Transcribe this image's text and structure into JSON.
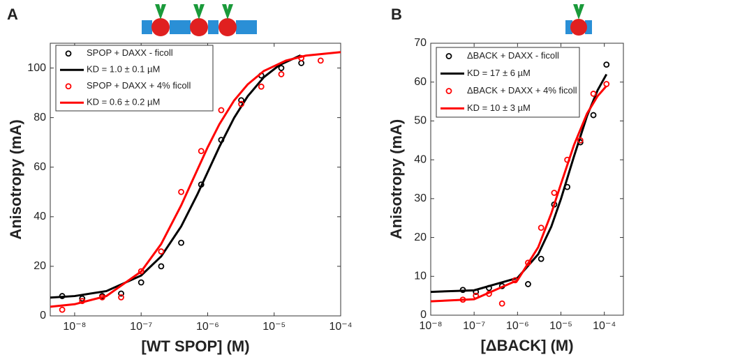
{
  "chart_data": [
    {
      "type": "scatter-fit",
      "panel_label": "A",
      "xlabel": "[WT SPOP] (M)",
      "ylabel": "Anisotropy (mA)",
      "log_x": true,
      "xlim": [
        4.3e-09,
        0.0001
      ],
      "ylim": [
        0,
        110
      ],
      "xticks": [
        {
          "value": 1e-08,
          "label": "10⁻⁸"
        },
        {
          "value": 1e-07,
          "label": "10⁻⁷"
        },
        {
          "value": 1e-06,
          "label": "10⁻⁶"
        },
        {
          "value": 1e-05,
          "label": "10⁻⁵"
        },
        {
          "value": 0.0001,
          "label": "10⁻⁴"
        }
      ],
      "yticks": [
        0,
        20,
        40,
        60,
        80,
        100
      ],
      "series": [
        {
          "name": "SPOP + DAXX - ficoll",
          "color": "#000000",
          "mark": "circle",
          "x": [
            6.5e-09,
            1.3e-08,
            2.6e-08,
            5e-08,
            1e-07,
            2e-07,
            4e-07,
            8e-07,
            1.6e-06,
            3.2e-06,
            6.4e-06,
            1.28e-05,
            2.56e-05
          ],
          "values": [
            8,
            7,
            8,
            9,
            13.5,
            20,
            29.5,
            53,
            71,
            87,
            97,
            100,
            102
          ]
        },
        {
          "name": "KD = 1.0 ± 0.1 µM",
          "color": "#000000",
          "mark": "line",
          "x": [
            4.3e-09,
            1e-08,
            3e-08,
            1e-07,
            2e-07,
            4e-07,
            7e-07,
            1e-06,
            1.5e-06,
            2.5e-06,
            4e-06,
            7e-06,
            1.2e-05,
            2.5e-05
          ],
          "values": [
            7.4,
            8.0,
            10.0,
            16.3,
            24,
            36.1,
            49,
            58,
            68.2,
            79.9,
            88.6,
            96.3,
            101.2,
            105.1
          ]
        },
        {
          "name": "SPOP + DAXX + 4% ficoll",
          "color": "#ff0000",
          "mark": "circle",
          "x": [
            6.5e-09,
            1.3e-08,
            2.6e-08,
            5e-08,
            1e-07,
            2e-07,
            4e-07,
            8e-07,
            1.6e-06,
            3.2e-06,
            6.4e-06,
            1.28e-05,
            2.56e-05,
            5e-05
          ],
          "values": [
            2.5,
            6,
            7.5,
            7.5,
            18,
            26,
            50,
            66.5,
            83,
            85.5,
            92.5,
            97.5,
            104,
            103
          ]
        },
        {
          "name": "KD = 0.6 ± 0.2 µM",
          "color": "#ff0000",
          "mark": "line",
          "x": [
            4.3e-09,
            1e-08,
            3e-08,
            1e-07,
            2e-07,
            4e-07,
            6e-07,
            1e-06,
            1.5e-06,
            2.5e-06,
            4e-06,
            7e-06,
            1.5e-05,
            3e-05,
            0.0001
          ],
          "values": [
            3.7,
            4.7,
            8.0,
            17.9,
            29,
            44.6,
            55,
            68,
            77.3,
            86.9,
            93.4,
            98.8,
            103,
            105,
            106.4
          ]
        }
      ]
    },
    {
      "type": "scatter-fit",
      "panel_label": "B",
      "xlabel": "[ΔBACK] (M)",
      "ylabel": "Anisotropy (mA)",
      "log_x": true,
      "xlim": [
        1e-08,
        0.000275
      ],
      "ylim": [
        0,
        70
      ],
      "xticks": [
        {
          "value": 1e-08,
          "label": "10⁻⁸"
        },
        {
          "value": 1e-07,
          "label": "10⁻⁷"
        },
        {
          "value": 1e-06,
          "label": "10⁻⁶"
        },
        {
          "value": 1e-05,
          "label": "10⁻⁵"
        },
        {
          "value": 0.0001,
          "label": "10⁻⁴"
        }
      ],
      "yticks": [
        0,
        10,
        20,
        30,
        40,
        50,
        60,
        70
      ],
      "series": [
        {
          "name": "ΔBACK + DAXX - ficoll",
          "color": "#000000",
          "mark": "circle",
          "x": [
            5.5e-08,
            1.1e-07,
            2.2e-07,
            4.4e-07,
            1.75e-06,
            3.5e-06,
            7e-06,
            1.4e-05,
            2.8e-05,
            5.6e-05,
            0.000112
          ],
          "values": [
            6.5,
            6,
            7,
            7.5,
            8,
            14.5,
            28.5,
            33,
            44.5,
            51.5,
            64.5
          ]
        },
        {
          "name": "KD = 17 ± 6 µM",
          "color": "#000000",
          "mark": "line",
          "x": [
            1e-08,
            1e-07,
            1e-06,
            3e-06,
            6e-06,
            1e-05,
            2e-05,
            4e-05,
            7e-05,
            0.000112
          ],
          "values": [
            6.0,
            6.4,
            9.6,
            15.7,
            22.8,
            29.9,
            40.9,
            51.3,
            57.9,
            62.0
          ]
        },
        {
          "name": "ΔBACK + DAXX + 4% ficoll",
          "color": "#ff0000",
          "mark": "circle",
          "x": [
            5.5e-08,
            1.1e-07,
            2.2e-07,
            4.4e-07,
            8.8e-07,
            1.75e-06,
            3.5e-06,
            7e-06,
            1.4e-05,
            2.8e-05,
            5.6e-05,
            0.000112
          ],
          "values": [
            4,
            5,
            5.5,
            3,
            9,
            13.5,
            22.5,
            31.5,
            40,
            45,
            57,
            59.5
          ]
        },
        {
          "name": "KD = 10 ± 3 µM",
          "color": "#ff0000",
          "mark": "line",
          "x": [
            1e-08,
            1e-07,
            1e-06,
            3e-06,
            6e-06,
            1e-05,
            2e-05,
            4e-05,
            7e-05,
            0.000112
          ],
          "values": [
            3.56,
            4.1,
            9.0,
            17.5,
            26.2,
            33.75,
            43.8,
            51.9,
            56.4,
            59.0
          ]
        }
      ]
    }
  ]
}
